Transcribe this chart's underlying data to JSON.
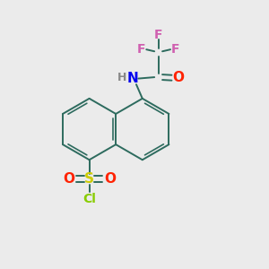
{
  "background_color": "#ebebeb",
  "bond_color": "#2d6b5e",
  "F_color": "#d060b0",
  "N_color": "#0000ee",
  "O_color": "#ff2200",
  "S_color": "#cccc00",
  "Cl_color": "#88cc00",
  "H_color": "#888888",
  "figsize": [
    3.0,
    3.0
  ],
  "dpi": 100,
  "xlim": [
    0,
    10
  ],
  "ylim": [
    0,
    10
  ]
}
